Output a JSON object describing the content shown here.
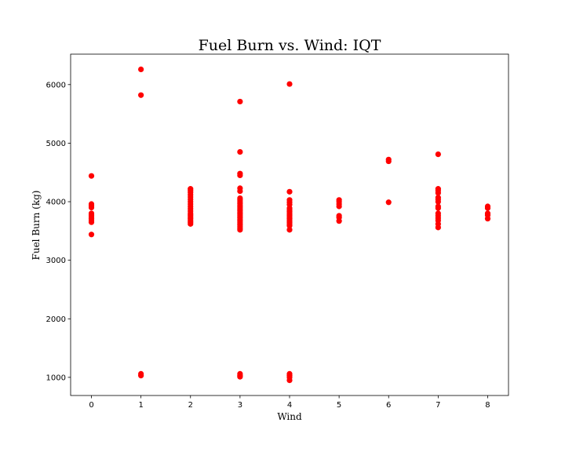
{
  "chart_data": {
    "type": "scatter",
    "title": "Fuel Burn vs. Wind: IQT",
    "xlabel": "Wind",
    "ylabel": "Fuel Burn (kg)",
    "xlim": [
      -0.42,
      8.42
    ],
    "ylim": [
      690,
      6520
    ],
    "xticks": [
      0,
      1,
      2,
      3,
      4,
      5,
      6,
      7,
      8
    ],
    "yticks": [
      1000,
      2000,
      3000,
      4000,
      5000,
      6000
    ],
    "grid": false,
    "marker_color": "#ff0000",
    "points": [
      {
        "x": 0,
        "y": 4440
      },
      {
        "x": 0,
        "y": 3960
      },
      {
        "x": 0,
        "y": 3930
      },
      {
        "x": 0,
        "y": 3900
      },
      {
        "x": 0,
        "y": 3800
      },
      {
        "x": 0,
        "y": 3770
      },
      {
        "x": 0,
        "y": 3740
      },
      {
        "x": 0,
        "y": 3710
      },
      {
        "x": 0,
        "y": 3680
      },
      {
        "x": 0,
        "y": 3650
      },
      {
        "x": 0,
        "y": 3440
      },
      {
        "x": 1,
        "y": 6260
      },
      {
        "x": 1,
        "y": 5820
      },
      {
        "x": 1,
        "y": 1060
      },
      {
        "x": 1,
        "y": 1030
      },
      {
        "x": 2,
        "y": 4220
      },
      {
        "x": 2,
        "y": 4190
      },
      {
        "x": 2,
        "y": 4160
      },
      {
        "x": 2,
        "y": 4120
      },
      {
        "x": 2,
        "y": 4080
      },
      {
        "x": 2,
        "y": 4040
      },
      {
        "x": 2,
        "y": 4000
      },
      {
        "x": 2,
        "y": 3960
      },
      {
        "x": 2,
        "y": 3920
      },
      {
        "x": 2,
        "y": 3880
      },
      {
        "x": 2,
        "y": 3840
      },
      {
        "x": 2,
        "y": 3800
      },
      {
        "x": 2,
        "y": 3770
      },
      {
        "x": 2,
        "y": 3740
      },
      {
        "x": 2,
        "y": 3710
      },
      {
        "x": 2,
        "y": 3680
      },
      {
        "x": 2,
        "y": 3650
      },
      {
        "x": 2,
        "y": 3620
      },
      {
        "x": 3,
        "y": 5710
      },
      {
        "x": 3,
        "y": 4850
      },
      {
        "x": 3,
        "y": 4480
      },
      {
        "x": 3,
        "y": 4450
      },
      {
        "x": 3,
        "y": 4230
      },
      {
        "x": 3,
        "y": 4180
      },
      {
        "x": 3,
        "y": 4060
      },
      {
        "x": 3,
        "y": 4030
      },
      {
        "x": 3,
        "y": 4000
      },
      {
        "x": 3,
        "y": 3970
      },
      {
        "x": 3,
        "y": 3940
      },
      {
        "x": 3,
        "y": 3910
      },
      {
        "x": 3,
        "y": 3880
      },
      {
        "x": 3,
        "y": 3850
      },
      {
        "x": 3,
        "y": 3820
      },
      {
        "x": 3,
        "y": 3790
      },
      {
        "x": 3,
        "y": 3760
      },
      {
        "x": 3,
        "y": 3730
      },
      {
        "x": 3,
        "y": 3700
      },
      {
        "x": 3,
        "y": 3670
      },
      {
        "x": 3,
        "y": 3640
      },
      {
        "x": 3,
        "y": 3610
      },
      {
        "x": 3,
        "y": 3580
      },
      {
        "x": 3,
        "y": 3550
      },
      {
        "x": 3,
        "y": 3520
      },
      {
        "x": 3,
        "y": 1060
      },
      {
        "x": 3,
        "y": 1030
      },
      {
        "x": 3,
        "y": 1010
      },
      {
        "x": 4,
        "y": 6010
      },
      {
        "x": 4,
        "y": 4170
      },
      {
        "x": 4,
        "y": 4030
      },
      {
        "x": 4,
        "y": 3990
      },
      {
        "x": 4,
        "y": 3950
      },
      {
        "x": 4,
        "y": 3890
      },
      {
        "x": 4,
        "y": 3860
      },
      {
        "x": 4,
        "y": 3830
      },
      {
        "x": 4,
        "y": 3800
      },
      {
        "x": 4,
        "y": 3770
      },
      {
        "x": 4,
        "y": 3740
      },
      {
        "x": 4,
        "y": 3710
      },
      {
        "x": 4,
        "y": 3680
      },
      {
        "x": 4,
        "y": 3650
      },
      {
        "x": 4,
        "y": 3620
      },
      {
        "x": 4,
        "y": 3590
      },
      {
        "x": 4,
        "y": 3520
      },
      {
        "x": 4,
        "y": 1060
      },
      {
        "x": 4,
        "y": 1030
      },
      {
        "x": 4,
        "y": 1000
      },
      {
        "x": 4,
        "y": 950
      },
      {
        "x": 5,
        "y": 4030
      },
      {
        "x": 5,
        "y": 4000
      },
      {
        "x": 5,
        "y": 3960
      },
      {
        "x": 5,
        "y": 3920
      },
      {
        "x": 5,
        "y": 3760
      },
      {
        "x": 5,
        "y": 3730
      },
      {
        "x": 5,
        "y": 3670
      },
      {
        "x": 6,
        "y": 4720
      },
      {
        "x": 6,
        "y": 4690
      },
      {
        "x": 6,
        "y": 3990
      },
      {
        "x": 7,
        "y": 4810
      },
      {
        "x": 7,
        "y": 4220
      },
      {
        "x": 7,
        "y": 4190
      },
      {
        "x": 7,
        "y": 4150
      },
      {
        "x": 7,
        "y": 4070
      },
      {
        "x": 7,
        "y": 4040
      },
      {
        "x": 7,
        "y": 4000
      },
      {
        "x": 7,
        "y": 3920
      },
      {
        "x": 7,
        "y": 3890
      },
      {
        "x": 7,
        "y": 3800
      },
      {
        "x": 7,
        "y": 3760
      },
      {
        "x": 7,
        "y": 3720
      },
      {
        "x": 7,
        "y": 3680
      },
      {
        "x": 7,
        "y": 3620
      },
      {
        "x": 7,
        "y": 3560
      },
      {
        "x": 8,
        "y": 3920
      },
      {
        "x": 8,
        "y": 3890
      },
      {
        "x": 8,
        "y": 3800
      },
      {
        "x": 8,
        "y": 3770
      },
      {
        "x": 8,
        "y": 3710
      }
    ]
  }
}
